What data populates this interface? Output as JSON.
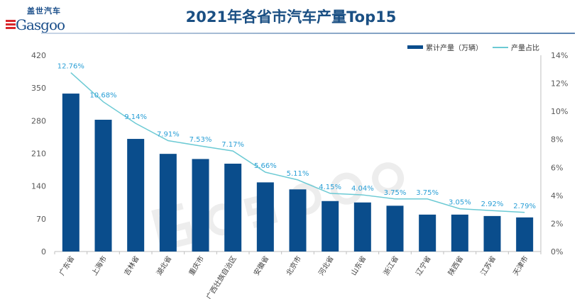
{
  "logo": {
    "cn": "盖世汽车",
    "en": "Gasgoo",
    "watermark": "盖世汽车 Gasgoo"
  },
  "title": "2021年各省市汽车产量Top15",
  "colors": {
    "bar": "#0a4d8c",
    "line": "#6ccad4",
    "label": "#2a9fd6",
    "title": "#1a4f83"
  },
  "chart_data": {
    "type": "bar",
    "title": "2021年各省市汽车产量Top15",
    "categories": [
      "广东省",
      "上海市",
      "吉林省",
      "湖北省",
      "重庆市",
      "广西壮族自治区",
      "安徽省",
      "北京市",
      "河北省",
      "山东省",
      "浙江省",
      "辽宁省",
      "陕西省",
      "江苏省",
      "天津市"
    ],
    "series": [
      {
        "name": "累计产量（万辆）",
        "type": "bar",
        "axis": "left",
        "values": [
          338,
          282,
          241,
          209,
          198,
          188,
          148,
          133,
          108,
          105,
          98,
          79,
          79,
          76,
          73
        ]
      },
      {
        "name": "产量占比",
        "type": "line",
        "axis": "right",
        "values": [
          12.76,
          10.68,
          9.14,
          7.91,
          7.53,
          7.17,
          5.66,
          5.11,
          4.15,
          4.04,
          3.75,
          3.75,
          3.05,
          2.92,
          2.79
        ],
        "labels": [
          "12.76%",
          "10.68%",
          "9.14%",
          "7.91%",
          "7.53%",
          "7.17%",
          "5.66%",
          "5.11%",
          "4.15%",
          "4.04%",
          "3.75%",
          "3.75%",
          "3.05%",
          "2.92%",
          "2.79%"
        ]
      }
    ],
    "ylim": [
      0,
      420
    ],
    "yticks": [
      "0",
      "70",
      "140",
      "210",
      "280",
      "350",
      "420"
    ],
    "y2lim": [
      0,
      14
    ],
    "y2ticks": [
      "0%",
      "2%",
      "4%",
      "6%",
      "8%",
      "10%",
      "12%",
      "14%"
    ],
    "grid": false,
    "legend": "top-right"
  }
}
